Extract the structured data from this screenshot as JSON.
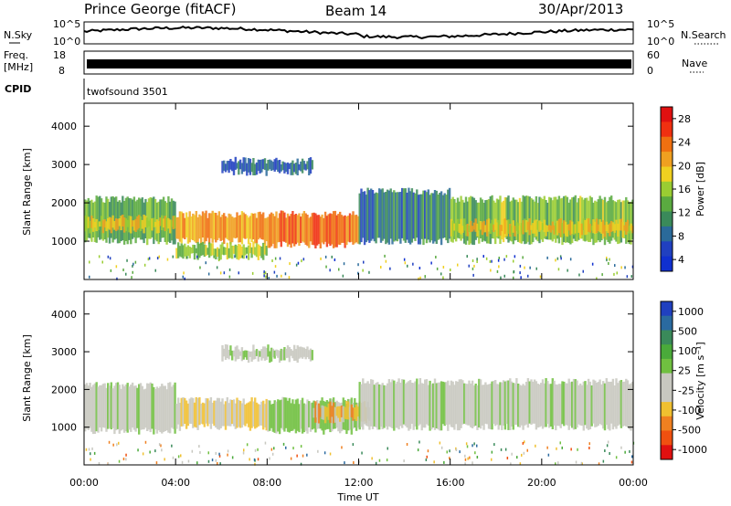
{
  "header": {
    "site": "Prince George (fitACF)",
    "beam": "Beam 14",
    "date": "30/Apr/2013"
  },
  "summary_panels": {
    "nsky_label": "N.Sky",
    "nsky_ticks": [
      "10^5",
      "10^0"
    ],
    "nsearch_label": "N.Search",
    "nsearch_ticks": [
      "10^5",
      "10^0"
    ],
    "freq_label": "Freq.",
    "freq_unit": "[MHz]",
    "freq_ticks": [
      "18",
      "8"
    ],
    "nave_label": "Nave",
    "nave_ticks": [
      "60",
      "0"
    ],
    "cpid_label": "CPID",
    "cpid_value": "twofsound 3501"
  },
  "colors": {
    "power_scale": [
      "#1030d0",
      "#2040c0",
      "#2a6a9a",
      "#3a8a5a",
      "#5aaa40",
      "#9acd32",
      "#f0d020",
      "#f0a020",
      "#f07010",
      "#f03010",
      "#e01010"
    ],
    "velocity_scale": [
      "#2040c0",
      "#2a6aa0",
      "#3a8a5a",
      "#4aaa3a",
      "#70c040",
      "#c8c8c0",
      "#c8c8c0",
      "#f0c030",
      "#f08020",
      "#f05010",
      "#e01010"
    ]
  },
  "chart_data": [
    {
      "type": "heatmap",
      "name": "power",
      "ylabel": "Slant Range [km]",
      "ylim": [
        0,
        4600
      ],
      "yticks": [
        "4000",
        "3000",
        "2000",
        "1000"
      ],
      "xlim_hours": [
        0,
        24
      ],
      "colorbar_label": "Power [dB]",
      "colorbar_ticks": [
        "28",
        "24",
        "20",
        "16",
        "12",
        "8",
        "4"
      ],
      "colorbar_range": [
        0,
        32
      ],
      "bands": [
        {
          "t": [
            0,
            4
          ],
          "r": [
            1000,
            2100
          ],
          "level": 12
        },
        {
          "t": [
            0,
            4
          ],
          "r": [
            1300,
            1600
          ],
          "level": 20
        },
        {
          "t": [
            4,
            8
          ],
          "r": [
            1000,
            1700
          ],
          "level": 22
        },
        {
          "t": [
            4,
            8
          ],
          "r": [
            600,
            900
          ],
          "level": 16
        },
        {
          "t": [
            8,
            12
          ],
          "r": [
            900,
            1700
          ],
          "level": 26
        },
        {
          "t": [
            12,
            16
          ],
          "r": [
            1000,
            2300
          ],
          "level": 8
        },
        {
          "t": [
            16,
            24
          ],
          "r": [
            1000,
            2100
          ],
          "level": 14
        },
        {
          "t": [
            16,
            24
          ],
          "r": [
            1200,
            1500
          ],
          "level": 20
        },
        {
          "t": [
            6,
            10
          ],
          "r": [
            2800,
            3100
          ],
          "level": 6
        }
      ]
    },
    {
      "type": "heatmap",
      "name": "velocity",
      "ylabel": "Slant Range [km]",
      "ylim": [
        0,
        4600
      ],
      "yticks": [
        "4000",
        "3000",
        "2000",
        "1000"
      ],
      "xlim_hours": [
        0,
        24
      ],
      "xticks": [
        "00:00",
        "04:00",
        "08:00",
        "12:00",
        "16:00",
        "20:00",
        "00:00"
      ],
      "xlabel": "Time UT",
      "colorbar_label": "Velocity [m s⁻¹]",
      "colorbar_ticks": [
        "1000",
        "500",
        "100",
        "25",
        "-25",
        "-100",
        "-500",
        "-1000"
      ],
      "bands": [
        {
          "t": [
            0,
            4
          ],
          "r": [
            900,
            2100
          ],
          "level": 0
        },
        {
          "t": [
            4,
            8
          ],
          "r": [
            1000,
            1700
          ],
          "level": -300
        },
        {
          "t": [
            8,
            12
          ],
          "r": [
            900,
            1700
          ],
          "level": 150
        },
        {
          "t": [
            10,
            12.5
          ],
          "r": [
            1200,
            1600
          ],
          "level": -400
        },
        {
          "t": [
            12,
            24
          ],
          "r": [
            1000,
            2200
          ],
          "level": 0
        },
        {
          "t": [
            6,
            10
          ],
          "r": [
            2800,
            3100
          ],
          "level": 0
        }
      ]
    }
  ]
}
